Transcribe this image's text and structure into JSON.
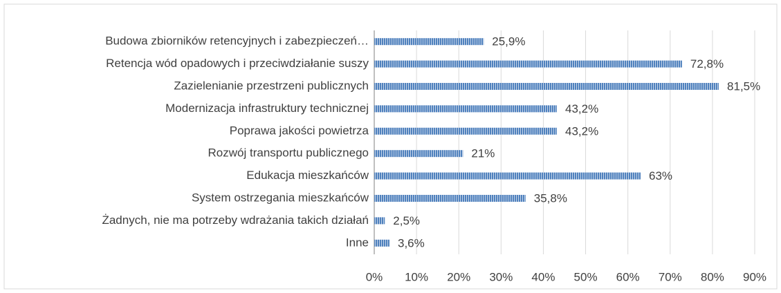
{
  "chart_data": {
    "type": "bar",
    "orientation": "horizontal",
    "categories": [
      "Budowa zbiorników retencyjnych i zabezpieczeń…",
      "Retencja wód opadowych i przeciwdziałanie suszy",
      "Zazielenianie przestrzeni publicznych",
      "Modernizacja infrastruktury technicznej",
      "Poprawa jakości powietrza",
      "Rozwój transportu publicznego",
      "Edukacja mieszkańców",
      "System ostrzegania mieszkańców",
      "Żadnych, nie ma potrzeby wdrażania takich działań",
      "Inne"
    ],
    "values": [
      25.9,
      72.8,
      81.5,
      43.2,
      43.2,
      21,
      63,
      35.8,
      2.5,
      3.6
    ],
    "value_labels": [
      "25,9%",
      "72,8%",
      "81,5%",
      "43,2%",
      "43,2%",
      "21%",
      "63%",
      "35,8%",
      "2,5%",
      "3,6%"
    ],
    "color": "#4f81bd",
    "xlim": [
      0,
      90
    ],
    "xticks": [
      {
        "value": 0,
        "label": "0%"
      },
      {
        "value": 10,
        "label": "10%"
      },
      {
        "value": 20,
        "label": "20%"
      },
      {
        "value": 30,
        "label": "30%"
      },
      {
        "value": 40,
        "label": "40%"
      },
      {
        "value": 50,
        "label": "50%"
      },
      {
        "value": 60,
        "label": "60%"
      },
      {
        "value": 70,
        "label": "70%"
      },
      {
        "value": 80,
        "label": "80%"
      },
      {
        "value": 90,
        "label": "90%"
      }
    ],
    "grid": true
  }
}
